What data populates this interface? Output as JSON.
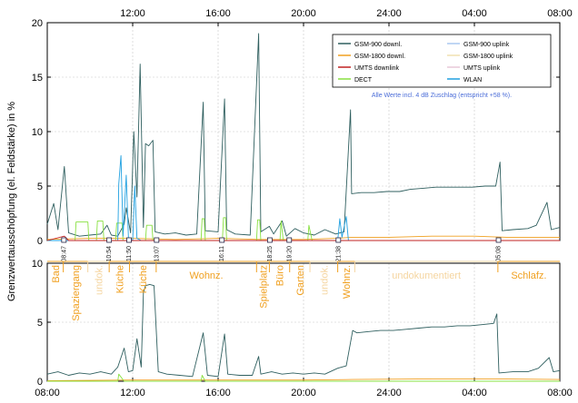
{
  "chart_data": [
    {
      "type": "line",
      "ylabel": "Grenzwertausschöpfung (el. Feldstärke) in %",
      "ylim": [
        0,
        20
      ],
      "yticks": [
        "0",
        "5",
        "10",
        "15",
        "20"
      ],
      "xticks": [
        "12:00",
        "16:00",
        "20:00",
        "24:00",
        "04:00",
        "08:00"
      ],
      "xlim_hours": [
        8,
        32
      ],
      "grid": true,
      "legend_position": "top-right",
      "legend": [
        {
          "name": "GSM-900 downl.",
          "color": "#2f5f5f"
        },
        {
          "name": "GSM-900 uplink",
          "color": "#aac8f0"
        },
        {
          "name": "GSM-1800 downl.",
          "color": "#f0a020"
        },
        {
          "name": "GSM-1800 uplink",
          "color": "#f0e0b0"
        },
        {
          "name": "UMTS downlink",
          "color": "#c02020"
        },
        {
          "name": "UMTS uplink",
          "color": "#e8c8d8"
        },
        {
          "name": "DECT",
          "color": "#88e040"
        },
        {
          "name": "WLAN",
          "color": "#20a0e0"
        }
      ],
      "annotation": "Alle Werte incl. 4 dB Zuschlag (entspricht +58 %).",
      "time_markers": [
        "08:47",
        "10:54",
        "11:50",
        "13:07",
        "16:11",
        "18:25",
        "19:20",
        "21:38",
        "05:08"
      ],
      "series": [
        {
          "name": "GSM-900 downl.",
          "color": "#2f5f5f",
          "points": [
            [
              8.0,
              1.5
            ],
            [
              8.3,
              3.4
            ],
            [
              8.5,
              1.0
            ],
            [
              8.8,
              6.8
            ],
            [
              9.0,
              0.7
            ],
            [
              9.5,
              0.4
            ],
            [
              10.0,
              0.5
            ],
            [
              10.5,
              0.6
            ],
            [
              10.8,
              1.4
            ],
            [
              11.0,
              0.5
            ],
            [
              11.3,
              0.4
            ],
            [
              11.6,
              1.5
            ],
            [
              11.7,
              3.0
            ],
            [
              11.9,
              0.7
            ],
            [
              12.05,
              10.0
            ],
            [
              12.2,
              4.0
            ],
            [
              12.35,
              16.2
            ],
            [
              12.5,
              1.2
            ],
            [
              12.6,
              8.9
            ],
            [
              12.75,
              8.7
            ],
            [
              12.95,
              9.2
            ],
            [
              13.05,
              0.8
            ],
            [
              13.5,
              0.6
            ],
            [
              14.0,
              0.7
            ],
            [
              14.5,
              0.5
            ],
            [
              15.0,
              0.6
            ],
            [
              15.3,
              12.7
            ],
            [
              15.4,
              0.9
            ],
            [
              16.0,
              0.8
            ],
            [
              16.3,
              13.0
            ],
            [
              16.4,
              1.0
            ],
            [
              16.8,
              0.6
            ],
            [
              17.5,
              0.5
            ],
            [
              17.9,
              19.0
            ],
            [
              18.0,
              0.8
            ],
            [
              18.4,
              1.3
            ],
            [
              18.6,
              0.6
            ],
            [
              19.0,
              1.8
            ],
            [
              19.2,
              0.4
            ],
            [
              19.6,
              1.1
            ],
            [
              20.0,
              0.7
            ],
            [
              20.5,
              0.5
            ],
            [
              21.0,
              1.0
            ],
            [
              21.5,
              0.6
            ],
            [
              21.9,
              0.8
            ],
            [
              22.2,
              12.0
            ],
            [
              22.25,
              4.3
            ],
            [
              22.7,
              4.4
            ],
            [
              23.3,
              4.4
            ],
            [
              23.9,
              4.5
            ],
            [
              24.5,
              4.5
            ],
            [
              25.0,
              4.7
            ],
            [
              25.6,
              4.8
            ],
            [
              26.2,
              4.9
            ],
            [
              26.8,
              4.9
            ],
            [
              27.3,
              4.9
            ],
            [
              27.9,
              4.9
            ],
            [
              28.5,
              5.0
            ],
            [
              29.0,
              5.0
            ],
            [
              29.2,
              7.2
            ],
            [
              29.3,
              0.9
            ],
            [
              29.8,
              1.0
            ],
            [
              30.5,
              1.1
            ],
            [
              30.9,
              1.4
            ],
            [
              31.4,
              3.5
            ],
            [
              31.6,
              1.0
            ],
            [
              32.0,
              1.2
            ]
          ]
        },
        {
          "name": "GSM-1800 downl.",
          "color": "#f0a020",
          "points": [
            [
              8.0,
              0.1
            ],
            [
              10.0,
              0.2
            ],
            [
              12.0,
              0.2
            ],
            [
              14.0,
              0.1
            ],
            [
              16.0,
              0.2
            ],
            [
              18.0,
              0.1
            ],
            [
              20.0,
              0.1
            ],
            [
              21.5,
              0.2
            ],
            [
              22.3,
              0.3
            ],
            [
              24.0,
              0.3
            ],
            [
              26.0,
              0.4
            ],
            [
              28.0,
              0.4
            ],
            [
              29.5,
              0.3
            ],
            [
              32.0,
              0.3
            ]
          ]
        },
        {
          "name": "DECT",
          "color": "#88e040",
          "points": [
            [
              8.0,
              0.0
            ],
            [
              9.3,
              0.0
            ],
            [
              9.35,
              1.7
            ],
            [
              9.9,
              1.7
            ],
            [
              9.95,
              0.0
            ],
            [
              10.3,
              0.0
            ],
            [
              10.35,
              1.8
            ],
            [
              10.6,
              1.8
            ],
            [
              10.65,
              0.0
            ],
            [
              11.2,
              0.0
            ],
            [
              11.25,
              1.6
            ],
            [
              11.5,
              1.6
            ],
            [
              11.55,
              0.0
            ],
            [
              12.6,
              0.0
            ],
            [
              12.65,
              1.4
            ],
            [
              12.9,
              1.4
            ],
            [
              12.95,
              0.0
            ],
            [
              15.2,
              0.0
            ],
            [
              15.25,
              2.0
            ],
            [
              15.35,
              2.0
            ],
            [
              15.4,
              0.0
            ],
            [
              16.2,
              0.0
            ],
            [
              16.25,
              2.1
            ],
            [
              16.35,
              2.1
            ],
            [
              16.4,
              0.0
            ],
            [
              17.8,
              0.0
            ],
            [
              17.85,
              1.9
            ],
            [
              17.95,
              1.9
            ],
            [
              18.0,
              0.0
            ],
            [
              18.9,
              0.0
            ],
            [
              18.95,
              1.8
            ],
            [
              19.05,
              0.0
            ],
            [
              20.2,
              0.0
            ],
            [
              20.25,
              1.4
            ],
            [
              20.4,
              0.0
            ],
            [
              32.0,
              0.0
            ]
          ]
        },
        {
          "name": "WLAN",
          "color": "#20a0e0",
          "points": [
            [
              8.0,
              0.0
            ],
            [
              11.3,
              0.0
            ],
            [
              11.35,
              5.2
            ],
            [
              11.45,
              7.8
            ],
            [
              11.55,
              0.4
            ],
            [
              11.7,
              6.0
            ],
            [
              11.8,
              0.3
            ],
            [
              12.0,
              0.0
            ],
            [
              12.1,
              5.0
            ],
            [
              12.2,
              0.2
            ],
            [
              12.4,
              0.0
            ],
            [
              21.6,
              0.0
            ],
            [
              21.7,
              2.0
            ],
            [
              21.8,
              0.3
            ],
            [
              22.0,
              2.2
            ],
            [
              22.1,
              0.0
            ],
            [
              32.0,
              0.0
            ]
          ]
        },
        {
          "name": "UMTS downlink",
          "color": "#c02020",
          "points": [
            [
              8.0,
              0.0
            ],
            [
              8.8,
              0.4
            ],
            [
              9.0,
              0.0
            ],
            [
              32.0,
              0.0
            ]
          ]
        }
      ]
    },
    {
      "type": "line",
      "ylim": [
        0,
        10
      ],
      "yticks": [
        "0",
        "5",
        "10"
      ],
      "xticks": [
        "08:00",
        "12:00",
        "16:00",
        "20:00",
        "24:00",
        "04:00",
        "08:00"
      ],
      "xlim_hours": [
        8,
        32
      ],
      "locations": [
        {
          "label": "Bad",
          "start": 8.0,
          "end": 8.75
        },
        {
          "label": "Spaziergang",
          "start": 8.75,
          "end": 9.9
        },
        {
          "label": "undok.",
          "start": 9.9,
          "end": 10.9
        },
        {
          "label": "Küche",
          "start": 10.9,
          "end": 11.85
        },
        {
          "label": "Küche",
          "start": 11.85,
          "end": 13.1
        },
        {
          "label": "Wohnz.",
          "start": 13.1,
          "end": 17.8
        },
        {
          "label": "Spielplatz",
          "start": 17.8,
          "end": 18.4
        },
        {
          "label": "Büro",
          "start": 18.4,
          "end": 19.35
        },
        {
          "label": "Garten",
          "start": 19.35,
          "end": 20.3
        },
        {
          "label": "undok.",
          "start": 20.3,
          "end": 21.6
        },
        {
          "label": "Wohnz.",
          "start": 21.6,
          "end": 22.4
        },
        {
          "label": "undokumentiert",
          "start": 22.4,
          "end": 29.1
        },
        {
          "label": "Schlafz.",
          "start": 29.1,
          "end": 32.0
        }
      ],
      "series": [
        {
          "name": "GSM-900 downl.",
          "color": "#2f5f5f",
          "points": [
            [
              8.0,
              0.6
            ],
            [
              8.5,
              0.8
            ],
            [
              9.0,
              0.5
            ],
            [
              9.5,
              0.7
            ],
            [
              10.0,
              0.6
            ],
            [
              10.5,
              0.8
            ],
            [
              11.0,
              0.6
            ],
            [
              11.3,
              1.2
            ],
            [
              11.6,
              2.8
            ],
            [
              11.8,
              0.8
            ],
            [
              12.0,
              0.9
            ],
            [
              12.2,
              3.6
            ],
            [
              12.4,
              1.2
            ],
            [
              12.5,
              7.5
            ],
            [
              12.6,
              8.1
            ],
            [
              12.8,
              8.2
            ],
            [
              13.0,
              8.1
            ],
            [
              13.2,
              0.8
            ],
            [
              13.6,
              0.6
            ],
            [
              14.2,
              0.5
            ],
            [
              14.8,
              0.4
            ],
            [
              15.3,
              4.1
            ],
            [
              15.5,
              0.5
            ],
            [
              16.0,
              0.4
            ],
            [
              16.3,
              4.0
            ],
            [
              16.45,
              0.6
            ],
            [
              17.0,
              0.5
            ],
            [
              17.6,
              0.5
            ],
            [
              17.9,
              2.1
            ],
            [
              18.0,
              0.6
            ],
            [
              18.5,
              0.8
            ],
            [
              19.0,
              0.6
            ],
            [
              19.5,
              0.7
            ],
            [
              20.0,
              0.6
            ],
            [
              20.5,
              0.7
            ],
            [
              21.0,
              0.6
            ],
            [
              21.6,
              1.1
            ],
            [
              22.0,
              1.3
            ],
            [
              22.3,
              4.3
            ],
            [
              22.5,
              4.1
            ],
            [
              23.0,
              4.2
            ],
            [
              23.6,
              4.3
            ],
            [
              24.2,
              4.3
            ],
            [
              24.8,
              4.4
            ],
            [
              25.4,
              4.5
            ],
            [
              26.0,
              4.6
            ],
            [
              26.6,
              4.6
            ],
            [
              27.2,
              4.7
            ],
            [
              27.8,
              4.7
            ],
            [
              28.4,
              4.8
            ],
            [
              28.9,
              4.9
            ],
            [
              29.05,
              5.7
            ],
            [
              29.15,
              0.7
            ],
            [
              29.8,
              0.8
            ],
            [
              30.5,
              0.8
            ],
            [
              31.0,
              1.1
            ],
            [
              31.5,
              2.0
            ],
            [
              31.7,
              0.8
            ],
            [
              32.0,
              0.9
            ]
          ]
        },
        {
          "name": "GSM-1800 downl.",
          "color": "#f0a020",
          "points": [
            [
              8.0,
              0.05
            ],
            [
              12.0,
              0.1
            ],
            [
              16.0,
              0.1
            ],
            [
              20.0,
              0.1
            ],
            [
              22.3,
              0.15
            ],
            [
              26.0,
              0.2
            ],
            [
              29.0,
              0.2
            ],
            [
              32.0,
              0.15
            ]
          ]
        },
        {
          "name": "DECT",
          "color": "#88e040",
          "points": [
            [
              8.0,
              0.0
            ],
            [
              11.3,
              0.0
            ],
            [
              11.35,
              0.6
            ],
            [
              11.6,
              0.0
            ],
            [
              15.2,
              0.0
            ],
            [
              15.25,
              0.5
            ],
            [
              15.4,
              0.0
            ],
            [
              32.0,
              0.0
            ]
          ]
        }
      ]
    }
  ]
}
